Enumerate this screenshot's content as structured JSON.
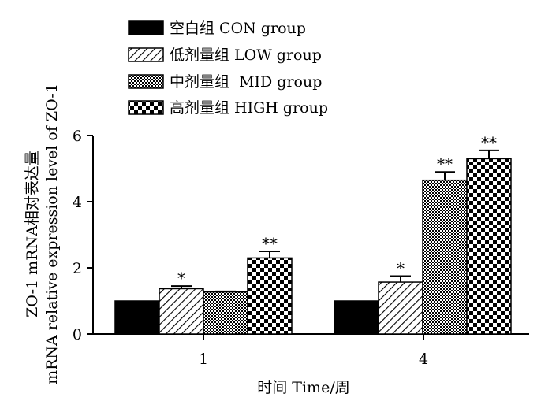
{
  "chart_data": {
    "type": "bar",
    "xlabel": "时间 Time/周",
    "ylabel_line1": "ZO-1 mRNA相对表达量",
    "ylabel_line2": "mRNA relative expression level of ZO-1",
    "ylim": [
      0,
      6
    ],
    "yticks": [
      "0",
      "2",
      "4",
      "6"
    ],
    "categories": [
      "1",
      "4"
    ],
    "legend_position": "top-left",
    "series": [
      {
        "name": "空白组 CON group",
        "pattern": "solid",
        "values": [
          1.0,
          1.0
        ],
        "errors": [
          0,
          0
        ],
        "stars": [
          "",
          ""
        ]
      },
      {
        "name": "低剂量组 LOW group",
        "pattern": "diag",
        "values": [
          1.37,
          1.57
        ],
        "errors": [
          0.08,
          0.18
        ],
        "stars": [
          "*",
          "*"
        ]
      },
      {
        "name": "中剂量组  MID group",
        "pattern": "checker",
        "values": [
          1.27,
          4.65
        ],
        "errors": [
          0.02,
          0.25
        ],
        "stars": [
          "",
          "**"
        ]
      },
      {
        "name": "高剂量组 HIGH group",
        "pattern": "check",
        "values": [
          2.3,
          5.3
        ],
        "errors": [
          0.2,
          0.25
        ],
        "stars": [
          "**",
          "**"
        ]
      }
    ]
  }
}
